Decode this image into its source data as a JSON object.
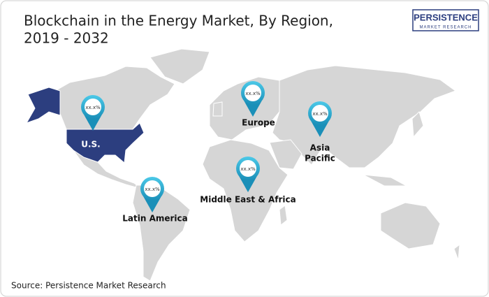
{
  "header": {
    "title_lines": [
      "Blockchain in the Energy Market, By Region,",
      "2019 - 2032"
    ]
  },
  "logo": {
    "name": "PERSISTENCE",
    "tagline": "MARKET RESEARCH"
  },
  "regions": [
    {
      "name_lines": [
        "U.S."
      ],
      "pin": "xx.x%"
    },
    {
      "name_lines": [
        "Europe"
      ],
      "pin": "xx.x%"
    },
    {
      "name_lines": [
        "Asia",
        "Pacific"
      ],
      "pin": "xx.x%"
    },
    {
      "name_lines": [
        "Middle East & Africa"
      ],
      "pin": "xx.x%"
    },
    {
      "name_lines": [
        "Latin America"
      ],
      "pin": "xx.x%"
    }
  ],
  "source": "Source: Persistence Market Research"
}
